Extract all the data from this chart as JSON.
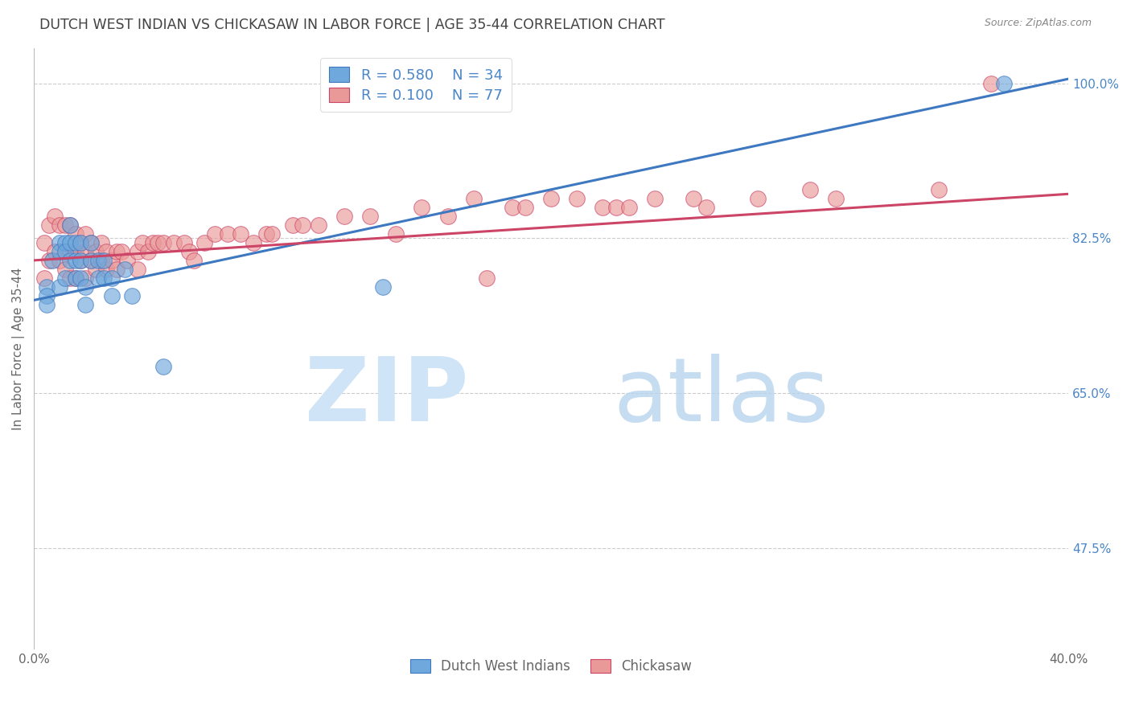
{
  "title": "DUTCH WEST INDIAN VS CHICKASAW IN LABOR FORCE | AGE 35-44 CORRELATION CHART",
  "source": "Source: ZipAtlas.com",
  "ylabel": "In Labor Force | Age 35-44",
  "xlim": [
    0.0,
    0.4
  ],
  "ylim": [
    0.36,
    1.04
  ],
  "blue_color": "#6fa8dc",
  "pink_color": "#ea9999",
  "trendline_blue_color": "#3d78c0",
  "trendline_pink_color": "#cc4466",
  "title_color": "#434343",
  "axis_color": "#666666",
  "grid_color": "#cccccc",
  "right_label_color": "#4a86c8",
  "blue_scatter_x": [
    0.005,
    0.005,
    0.005,
    0.007,
    0.01,
    0.01,
    0.01,
    0.012,
    0.012,
    0.012,
    0.014,
    0.014,
    0.014,
    0.016,
    0.016,
    0.016,
    0.018,
    0.018,
    0.018,
    0.02,
    0.02,
    0.022,
    0.022,
    0.025,
    0.025,
    0.027,
    0.027,
    0.03,
    0.03,
    0.035,
    0.038,
    0.05,
    0.135,
    0.375
  ],
  "blue_scatter_y": [
    0.77,
    0.76,
    0.75,
    0.8,
    0.82,
    0.81,
    0.77,
    0.82,
    0.81,
    0.78,
    0.84,
    0.82,
    0.8,
    0.82,
    0.8,
    0.78,
    0.82,
    0.8,
    0.78,
    0.77,
    0.75,
    0.82,
    0.8,
    0.8,
    0.78,
    0.8,
    0.78,
    0.78,
    0.76,
    0.79,
    0.76,
    0.68,
    0.77,
    1.0
  ],
  "pink_scatter_x": [
    0.004,
    0.004,
    0.006,
    0.006,
    0.008,
    0.008,
    0.01,
    0.01,
    0.012,
    0.012,
    0.014,
    0.014,
    0.014,
    0.016,
    0.016,
    0.016,
    0.018,
    0.018,
    0.02,
    0.02,
    0.02,
    0.022,
    0.022,
    0.024,
    0.024,
    0.026,
    0.026,
    0.028,
    0.028,
    0.03,
    0.032,
    0.032,
    0.034,
    0.036,
    0.04,
    0.04,
    0.042,
    0.044,
    0.046,
    0.048,
    0.05,
    0.054,
    0.058,
    0.06,
    0.062,
    0.066,
    0.07,
    0.075,
    0.08,
    0.085,
    0.09,
    0.092,
    0.1,
    0.104,
    0.11,
    0.12,
    0.13,
    0.14,
    0.15,
    0.16,
    0.17,
    0.175,
    0.185,
    0.19,
    0.2,
    0.21,
    0.22,
    0.225,
    0.23,
    0.24,
    0.255,
    0.26,
    0.28,
    0.3,
    0.31,
    0.35,
    0.37
  ],
  "pink_scatter_y": [
    0.82,
    0.78,
    0.84,
    0.8,
    0.85,
    0.81,
    0.84,
    0.8,
    0.84,
    0.79,
    0.84,
    0.81,
    0.78,
    0.83,
    0.81,
    0.78,
    0.82,
    0.8,
    0.83,
    0.81,
    0.78,
    0.82,
    0.8,
    0.81,
    0.79,
    0.82,
    0.8,
    0.81,
    0.79,
    0.8,
    0.81,
    0.79,
    0.81,
    0.8,
    0.81,
    0.79,
    0.82,
    0.81,
    0.82,
    0.82,
    0.82,
    0.82,
    0.82,
    0.81,
    0.8,
    0.82,
    0.83,
    0.83,
    0.83,
    0.82,
    0.83,
    0.83,
    0.84,
    0.84,
    0.84,
    0.85,
    0.85,
    0.83,
    0.86,
    0.85,
    0.87,
    0.78,
    0.86,
    0.86,
    0.87,
    0.87,
    0.86,
    0.86,
    0.86,
    0.87,
    0.87,
    0.86,
    0.87,
    0.88,
    0.87,
    0.88,
    1.0
  ],
  "trendline_blue_x0": 0.0,
  "trendline_blue_y0": 0.755,
  "trendline_blue_x1": 0.4,
  "trendline_blue_y1": 1.005,
  "trendline_pink_x0": 0.0,
  "trendline_pink_y0": 0.8,
  "trendline_pink_x1": 0.4,
  "trendline_pink_y1": 0.875
}
